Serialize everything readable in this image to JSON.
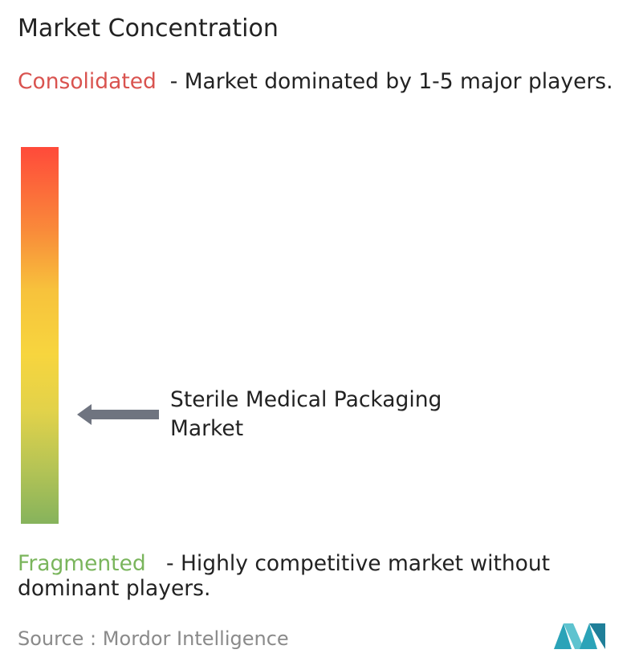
{
  "header": {
    "title": "Market Concentration"
  },
  "consolidated": {
    "label": "Consolidated",
    "description": "- Market dominated by 1-5 major players."
  },
  "marker": {
    "label": "Sterile Medical Packaging Market"
  },
  "fragmented": {
    "label": "Fragmented",
    "description": "- Highly competitive market without dominant players."
  },
  "source": {
    "label": "Source :",
    "value": "Mordor Intelligence"
  }
}
